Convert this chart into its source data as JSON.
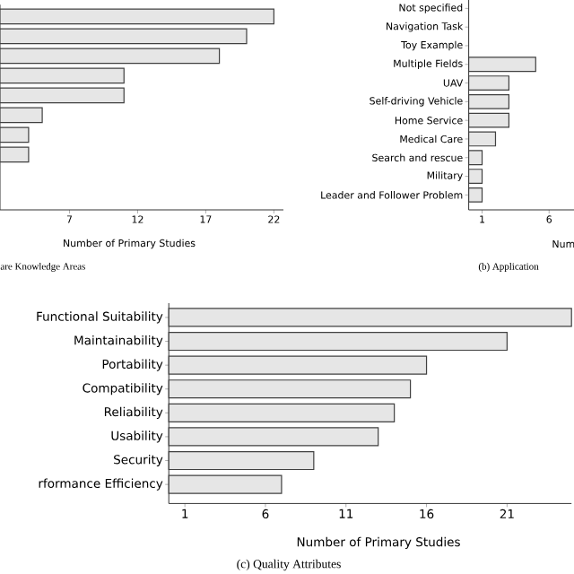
{
  "chart_data": [
    {
      "type": "bar",
      "orientation": "horizontal",
      "title": "are Knowledge Areas",
      "xlabel": "Number of Primary Studies",
      "categories": [
        null,
        null,
        null,
        null,
        null,
        null,
        null,
        null,
        null,
        null
      ],
      "values": [
        22,
        20,
        18,
        11,
        11,
        5,
        4,
        4,
        null,
        null
      ],
      "color": "#e6e6e6",
      "xlim": [
        1.9,
        22.7
      ],
      "xticks": [
        7,
        12,
        17,
        22
      ]
    },
    {
      "type": "bar",
      "orientation": "horizontal",
      "title": "(b) Application",
      "xlabel": "Num",
      "categories": [
        "Not specified",
        "Navigation Task",
        "Toy Example",
        "Multiple Fields",
        "UAV",
        "Self-driving Vehicle",
        "Home Service",
        "Medical Care",
        "Search and rescue",
        "Military",
        "Leader and Follower Problem"
      ],
      "values": [
        null,
        null,
        null,
        5,
        3,
        3,
        3,
        2,
        1,
        1,
        1
      ],
      "color": "#e6e6e6",
      "xlim": [
        0,
        7.9
      ],
      "xticks": [
        1,
        6
      ]
    },
    {
      "type": "bar",
      "orientation": "horizontal",
      "title": "(c) Quality Attributes",
      "xlabel": "Number of Primary Studies",
      "categories": [
        "Functional Suitability",
        "Maintainability",
        "Portability",
        "Compatibility",
        "Reliability",
        "Usability",
        "Security",
        "rformance Efficiency"
      ],
      "values": [
        25,
        21,
        16,
        15,
        14,
        13,
        9,
        7
      ],
      "color": "#e6e6e6",
      "xlim": [
        0,
        25
      ],
      "xticks": [
        1,
        6,
        11,
        16,
        21
      ]
    }
  ]
}
